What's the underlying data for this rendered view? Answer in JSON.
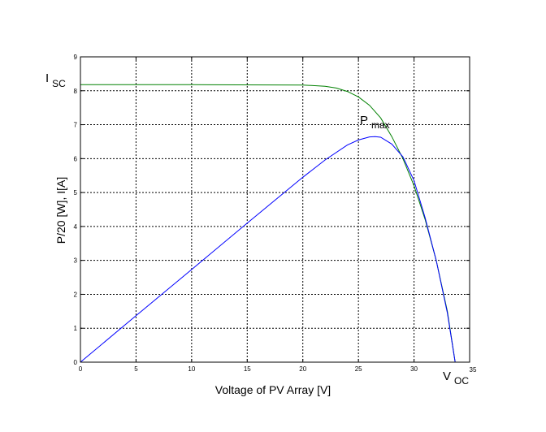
{
  "chart_data": {
    "type": "line",
    "xlabel": "Voltage of PV Array [V]",
    "ylabel": "P/20 [W], I[A]",
    "xlim": [
      0,
      35
    ],
    "ylim": [
      0,
      9
    ],
    "xticks": [
      "0",
      "5",
      "10",
      "15",
      "20",
      "25",
      "30",
      "35"
    ],
    "yticks": [
      "0",
      "1",
      "2",
      "3",
      "4",
      "5",
      "6",
      "7",
      "8",
      "9"
    ],
    "grid": true,
    "annotations": {
      "isc": {
        "main": "I",
        "sub": "SC",
        "x": 0,
        "y": 8.2
      },
      "voc": {
        "main": "V",
        "sub": "OC",
        "x": 33.7,
        "y": 0
      },
      "pmax": {
        "main": "P",
        "sub": "max",
        "x": 26.5,
        "y": 6.65
      }
    },
    "series": [
      {
        "color": "#008000",
        "x": [
          0,
          10,
          20,
          22,
          23,
          24,
          25,
          26,
          27,
          28,
          29,
          30,
          31,
          32,
          33,
          33.7
        ],
        "y": [
          8.18,
          8.18,
          8.17,
          8.13,
          8.08,
          7.98,
          7.82,
          7.57,
          7.2,
          6.65,
          6.0,
          5.2,
          4.2,
          3.0,
          1.5,
          0
        ]
      },
      {
        "color": "#0000ff",
        "x": [
          0,
          5,
          10,
          15,
          20,
          22,
          24,
          25,
          26,
          26.5,
          27,
          28,
          29,
          30,
          31,
          32,
          33,
          33.7
        ],
        "y": [
          0,
          1.37,
          2.73,
          4.1,
          5.45,
          5.96,
          6.4,
          6.55,
          6.64,
          6.65,
          6.63,
          6.43,
          6.05,
          5.35,
          4.25,
          3.0,
          1.45,
          0
        ]
      }
    ]
  }
}
